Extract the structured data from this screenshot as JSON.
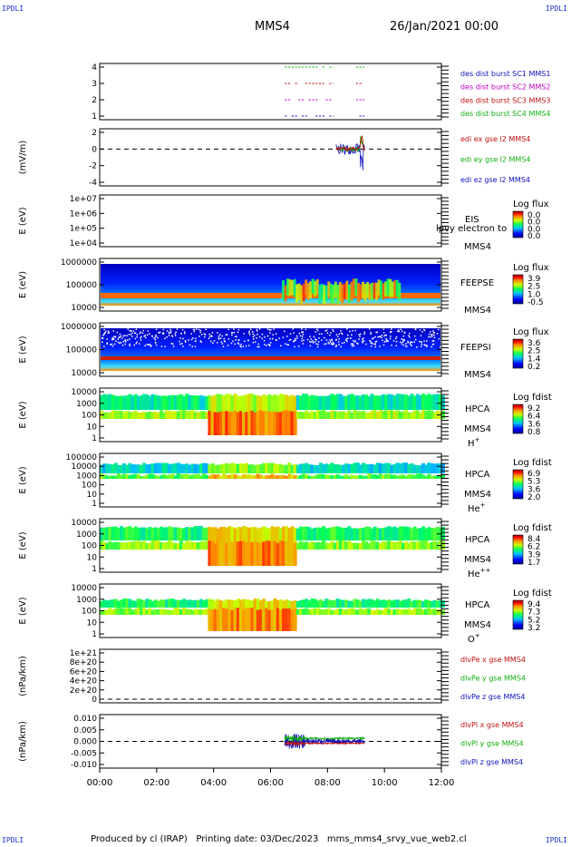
{
  "corner_label": "IPDLI",
  "header": {
    "spacecraft": "MMS4",
    "date": "26/Jan/2021 00:00"
  },
  "footer": {
    "produced": "Produced by cl (IRAP)",
    "printed": "Printing date: 03/Dec/2023",
    "file": "mms_mms4_srvy_vue_web2.cl"
  },
  "time_axis": [
    "00:00",
    "02:00",
    "04:00",
    "06:00",
    "08:00",
    "10:00",
    "12:00"
  ],
  "panels": [
    {
      "id": "burst",
      "ylabel": "",
      "ticks": [
        "4",
        "3",
        "2",
        "1"
      ],
      "legend": [
        {
          "text": "des dist burst SC1 MMS1",
          "color": "#1010c0"
        },
        {
          "text": "des dist burst SC2 MMS2",
          "color": "#c000c0"
        },
        {
          "text": "des dist burst SC3 MMS3",
          "color": "#c01010"
        },
        {
          "text": "des dist burst SC4 MMS4",
          "color": "#10b010"
        }
      ]
    },
    {
      "id": "edi",
      "ylabel": "(mV/m)",
      "ticks": [
        "2",
        "0",
        "-2",
        "-4"
      ],
      "legend": [
        {
          "text": "edi ex gse l2 MMS4",
          "color": "#c01010"
        },
        {
          "text": "edi ey gse l2 MMS4",
          "color": "#10b010"
        },
        {
          "text": "edi ez gse l2 MMS4",
          "color": "#1010c0"
        }
      ]
    },
    {
      "id": "eis",
      "ylabel": "E (eV)",
      "ticks": [
        "1e+07",
        "1e+06",
        "1e+05",
        "1e+04"
      ],
      "inst": "EIS",
      "inst2": "MMS4",
      "overlay": "lpvy electron to",
      "cbar_title": "Log flux",
      "cbar_ticks": [
        "0.0",
        "0.0",
        "0.0",
        "0.0"
      ]
    },
    {
      "id": "feepse",
      "ylabel": "E (eV)",
      "ticks": [
        "1000000",
        "100000",
        "10000"
      ],
      "inst": "FEEPSE",
      "inst2": "MMS4",
      "cbar_title": "Log flux",
      "cbar_ticks": [
        "3.9",
        "2.5",
        "1.0",
        "-0.5"
      ]
    },
    {
      "id": "feepsi",
      "ylabel": "E (eV)",
      "ticks": [
        "1000000",
        "100000",
        "10000"
      ],
      "inst": "FEEPSI",
      "inst2": "MMS4",
      "cbar_title": "Log flux",
      "cbar_ticks": [
        "3.6",
        "2.5",
        "1.4",
        "0.2"
      ]
    },
    {
      "id": "hpca_h",
      "ylabel": "E (eV)",
      "ticks": [
        "10000",
        "1000",
        "100",
        "10",
        "1"
      ],
      "inst": "HPCA",
      "inst2": "MMS4",
      "species": "H",
      "species_sup": "+",
      "cbar_title": "Log fdist",
      "cbar_ticks": [
        "9.2",
        "6.4",
        "3.6",
        "0.8"
      ]
    },
    {
      "id": "hpca_he",
      "ylabel": "E (eV)",
      "ticks": [
        "100000",
        "10000",
        "1000",
        "100",
        "10",
        "1"
      ],
      "inst": "HPCA",
      "inst2": "MMS4",
      "species": "He",
      "species_sup": "+",
      "cbar_title": "Log fdist",
      "cbar_ticks": [
        "6.9",
        "5.3",
        "3.6",
        "2.0"
      ]
    },
    {
      "id": "hpca_he2",
      "ylabel": "E (eV)",
      "ticks": [
        "10000",
        "1000",
        "100",
        "10",
        "1"
      ],
      "inst": "HPCA",
      "inst2": "MMS4",
      "species": "He",
      "species_sup": "++",
      "cbar_title": "Log fdist",
      "cbar_ticks": [
        "8.4",
        "6.2",
        "3.9",
        "1.7"
      ]
    },
    {
      "id": "hpca_o",
      "ylabel": "E (eV)",
      "ticks": [
        "10000",
        "1000",
        "100",
        "10",
        "1"
      ],
      "inst": "HPCA",
      "inst2": "MMS4",
      "species": "O",
      "species_sup": "+",
      "cbar_title": "Log fdist",
      "cbar_ticks": [
        "9.4",
        "7.3",
        "5.2",
        "3.2"
      ]
    },
    {
      "id": "divpe",
      "ylabel": "(nPa/km)",
      "ticks": [
        "1e+21",
        "8e+20",
        "6e+20",
        "4e+20",
        "2e+20",
        "0"
      ],
      "legend": [
        {
          "text": "dlvPe x gse MMS4",
          "color": "#c01010"
        },
        {
          "text": "dlvPe y gse MMS4",
          "color": "#10b010"
        },
        {
          "text": "dlvPe z gse MMS4",
          "color": "#1010c0"
        }
      ]
    },
    {
      "id": "divpi",
      "ylabel": "(nPa/km)",
      "ticks": [
        "0.010",
        "0.005",
        "0.000",
        "-0.005",
        "-0.010"
      ],
      "legend": [
        {
          "text": "dlvPl x gse MMS4",
          "color": "#c01010"
        },
        {
          "text": "dlvPl y gse MMS4",
          "color": "#10b010"
        },
        {
          "text": "dlvPl z gse MMS4",
          "color": "#1010c0"
        }
      ]
    }
  ],
  "chart_data": {
    "type": "heatmap",
    "x_range": [
      "00:00",
      "12:00"
    ],
    "x_ticks": [
      "00:00",
      "02:00",
      "04:00",
      "06:00",
      "08:00",
      "10:00",
      "12:00"
    ],
    "burst_intervals_hours": [
      [
        6.5,
        8.2
      ],
      [
        9.0,
        9.3
      ]
    ],
    "burst_levels": [
      1,
      2,
      3,
      4
    ],
    "edi_interval_hours": [
      8.3,
      9.3
    ],
    "edi_ylim": [
      -5,
      2.5
    ],
    "divpi_interval_hours": [
      6.5,
      9.3
    ],
    "divpi_ylim": [
      -0.012,
      0.012
    ],
    "divpe_ylim": [
      0,
      1.1e+21
    ],
    "hpca_enhancement_hours": [
      3.8,
      6.8
    ]
  }
}
